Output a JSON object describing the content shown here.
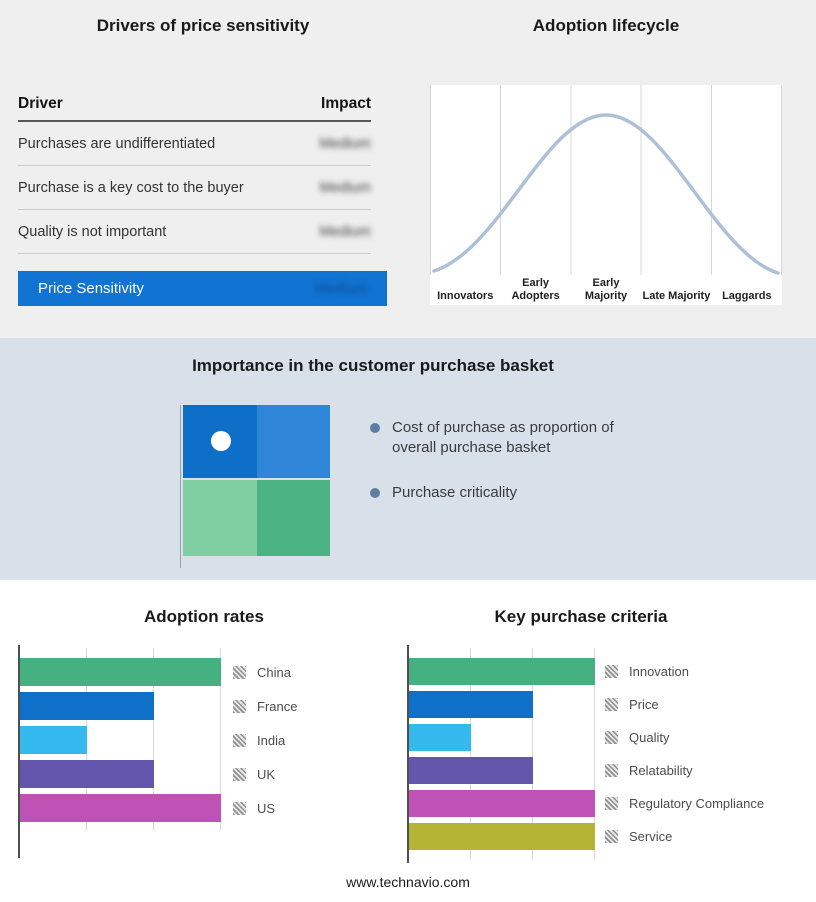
{
  "top": {
    "background": "#efefef",
    "drivers_panel": {
      "title": "Drivers of price sensitivity",
      "columns": {
        "driver": "Driver",
        "impact": "Impact"
      },
      "rows": [
        {
          "driver": "Purchases are undifferentiated",
          "impact": "Medium",
          "impact_blurred": true
        },
        {
          "driver": "Purchase is a key cost to the buyer",
          "impact": "Medium",
          "impact_blurred": true
        },
        {
          "driver": "Quality is not important",
          "impact": "Medium",
          "impact_blurred": true
        }
      ],
      "highlight_row": {
        "driver": "Price Sensitivity",
        "impact": "Medium",
        "impact_blurred": true,
        "background": "#1173d2",
        "text_color": "#ffffff"
      }
    },
    "lifecycle_panel": {
      "title": "Adoption lifecycle",
      "panel_background": "#ffffff",
      "curve_color": "#adc0d8"
    }
  },
  "middle": {
    "background": "#d8e1ea",
    "title": "Importance in the customer purchase basket",
    "bullets": [
      "Cost of purchase as proportion of overall purchase basket",
      "Purchase criticality"
    ],
    "bullet_color": "#5e7da1",
    "quadrant": {
      "top_left": "#0d6fc8",
      "top_right": "#2f86d9",
      "bottom_left": "#7fcfa2",
      "bottom_right": "#4cb484",
      "dot_color": "#ffffff"
    }
  },
  "bottom": {
    "footer": "www.technavio.com"
  },
  "chart_data": [
    {
      "type": "line",
      "title": "Adoption lifecycle",
      "categories": [
        "Innovators",
        "Early Adopters",
        "Early Majority",
        "Late Majority",
        "Laggards"
      ],
      "values": [
        0.05,
        0.55,
        1.0,
        0.55,
        0.05
      ],
      "xlabel": "",
      "ylabel": "",
      "line_color": "#adc0d8",
      "grid": "vertical stage separators only",
      "notes": "bell-shaped adoption curve; no numeric axes shown"
    },
    {
      "type": "bar",
      "orientation": "horizontal",
      "title": "Adoption rates",
      "categories": [
        "China",
        "France",
        "India",
        "UK",
        "US"
      ],
      "values": [
        3,
        2,
        1,
        2,
        3
      ],
      "xlim": [
        0,
        3
      ],
      "axis_tick_labels_shown": false,
      "colors": [
        "#45b181",
        "#0e70c8",
        "#33b9ed",
        "#6456ad",
        "#bf52b5"
      ],
      "legend_position": "right",
      "grid": true,
      "notes": "values are relative bar lengths; no numeric axis labels shown"
    },
    {
      "type": "bar",
      "orientation": "horizontal",
      "title": "Key purchase criteria",
      "categories": [
        "Innovation",
        "Price",
        "Quality",
        "Relatability",
        "Regulatory Compliance",
        "Service"
      ],
      "values": [
        3,
        2,
        1,
        2,
        3,
        3
      ],
      "xlim": [
        0,
        3
      ],
      "axis_tick_labels_shown": false,
      "colors": [
        "#45b181",
        "#0e70c8",
        "#33b9ed",
        "#6456ad",
        "#bf52b5",
        "#b5b434"
      ],
      "legend_position": "right",
      "grid": true,
      "notes": "values are relative bar lengths; no numeric axis labels shown"
    }
  ]
}
